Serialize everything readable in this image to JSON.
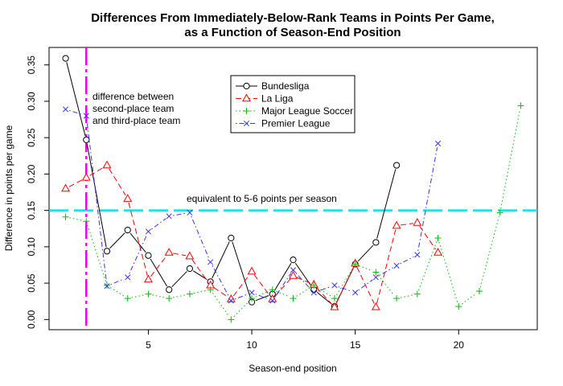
{
  "chart_data": {
    "type": "line",
    "title_line1": "Differences From Immediately-Below-Rank Teams in Points Per Game,",
    "title_line2": "as a Function of Season-End Position",
    "xlabel": "Season-end position",
    "ylabel": "Difference in points per game",
    "xlim": [
      0.2,
      23.8
    ],
    "ylim": [
      -0.014,
      0.374
    ],
    "x_ticks": [
      5,
      10,
      15,
      20
    ],
    "y_ticks": [
      0.0,
      0.05,
      0.1,
      0.15,
      0.2,
      0.25,
      0.3,
      0.35
    ],
    "y_tick_labels": [
      "0.00",
      "0.05",
      "0.10",
      "0.15",
      "0.20",
      "0.25",
      "0.30",
      "0.35"
    ],
    "grid": false,
    "legend_position": "top-center",
    "series": [
      {
        "name": "Bundesliga",
        "color": "#000000",
        "marker": "circle",
        "line_style": "solid",
        "x": [
          1,
          2,
          3,
          4,
          5,
          6,
          7,
          8,
          9,
          10,
          11,
          12,
          13,
          14,
          15,
          16,
          17
        ],
        "values": [
          0.359,
          0.247,
          0.094,
          0.123,
          0.088,
          0.041,
          0.07,
          0.052,
          0.112,
          0.024,
          0.035,
          0.082,
          0.041,
          0.018,
          0.076,
          0.106,
          0.212
        ]
      },
      {
        "name": "La Liga",
        "color": "#ff0000",
        "marker": "triangle",
        "line_style": "dashed",
        "x": [
          1,
          2,
          3,
          4,
          5,
          6,
          7,
          8,
          9,
          10,
          11,
          12,
          13,
          14,
          15,
          16,
          17,
          18,
          19
        ],
        "values": [
          0.18,
          0.195,
          0.212,
          0.166,
          0.055,
          0.092,
          0.087,
          0.047,
          0.028,
          0.066,
          0.028,
          0.06,
          0.048,
          0.017,
          0.077,
          0.017,
          0.129,
          0.133,
          0.092
        ]
      },
      {
        "name": "Major League Soccer",
        "color": "#00bb00",
        "marker": "plus",
        "line_style": "dotted",
        "x": [
          1,
          2,
          3,
          4,
          5,
          6,
          7,
          8,
          9,
          10,
          11,
          12,
          13,
          14,
          15,
          16,
          17,
          18,
          19,
          20,
          21,
          22,
          23
        ],
        "values": [
          0.141,
          0.135,
          0.047,
          0.029,
          0.035,
          0.029,
          0.035,
          0.041,
          0.0,
          0.029,
          0.041,
          0.029,
          0.047,
          0.029,
          0.076,
          0.065,
          0.029,
          0.035,
          0.112,
          0.018,
          0.039,
          0.147,
          0.294
        ]
      },
      {
        "name": "Premier League",
        "color": "#3333ee",
        "marker": "cross",
        "line_style": "dashdot",
        "x": [
          1,
          2,
          3,
          4,
          5,
          6,
          7,
          8,
          9,
          10,
          11,
          12,
          13,
          14,
          15,
          16,
          17,
          18,
          19
        ],
        "values": [
          0.289,
          0.28,
          0.046,
          0.058,
          0.121,
          0.142,
          0.147,
          0.079,
          0.026,
          0.037,
          0.026,
          0.068,
          0.037,
          0.047,
          0.037,
          0.058,
          0.074,
          0.089,
          0.242
        ]
      }
    ],
    "reference_lines": [
      {
        "orientation": "horizontal",
        "value": 0.15,
        "color": "#00e5ee",
        "label": "equivalent to 5-6 points per season"
      },
      {
        "orientation": "vertical",
        "value": 2,
        "color": "#ee00ee",
        "label_lines": [
          "difference between",
          "second-place team",
          "and third-place team"
        ]
      }
    ]
  }
}
